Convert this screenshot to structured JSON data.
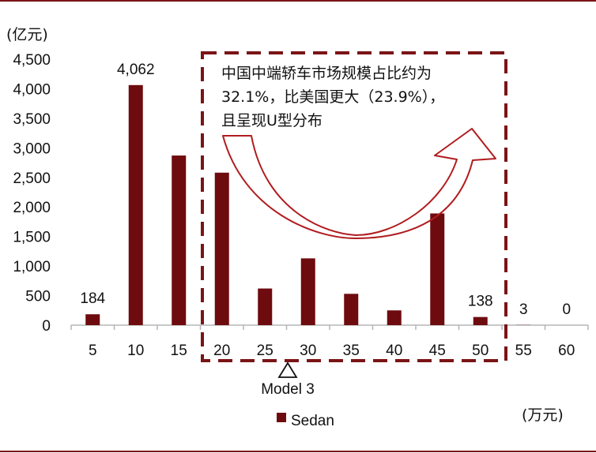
{
  "chart_data": {
    "type": "bar",
    "categories": [
      "5",
      "10",
      "15",
      "20",
      "25",
      "30",
      "35",
      "40",
      "45",
      "50",
      "55",
      "60"
    ],
    "series": [
      {
        "name": "Sedan",
        "values": [
          184,
          4062,
          2870,
          2580,
          620,
          1130,
          530,
          250,
          1890,
          138,
          3,
          0
        ],
        "data_labels": [
          "184",
          "4,062",
          null,
          null,
          null,
          null,
          null,
          null,
          null,
          "138",
          "3",
          "0"
        ]
      }
    ],
    "ylim": [
      0,
      4500
    ],
    "yticks": [
      0,
      500,
      1000,
      1500,
      2000,
      2500,
      3000,
      3500,
      4000,
      4500
    ],
    "ytick_labels": [
      "0",
      "500",
      "1,000",
      "1,500",
      "2,000",
      "2,500",
      "3,000",
      "3,500",
      "4,000",
      "4,500"
    ],
    "ylabel": "(亿元)",
    "xlabel": "(万元)",
    "legend": "bottom-center",
    "grid": false,
    "annotation": {
      "lines": [
        "中国中端轿车市场规模占比约为",
        "32.1%，比美国更大（23.9%），",
        "且呈现U型分布"
      ],
      "highlight_range": [
        "20",
        "50"
      ]
    },
    "marker": {
      "label": "Model 3",
      "category": "30"
    },
    "colors": {
      "bar": "#6e0b0e",
      "highlight": "#7a1416",
      "arrow": "#b01c1f"
    }
  }
}
